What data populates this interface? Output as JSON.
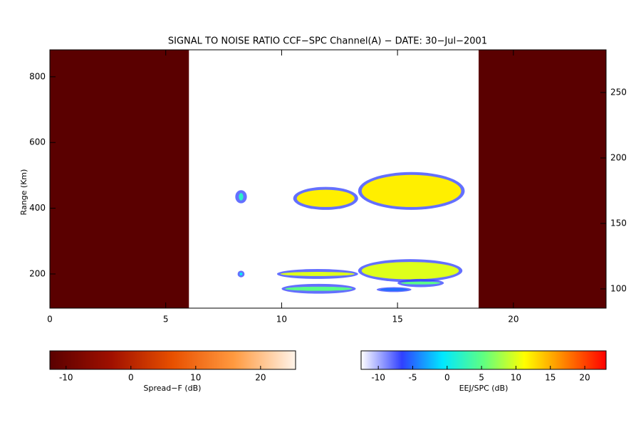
{
  "chart_data": {
    "type": "heatmap",
    "title": "SIGNAL TO NOISE RATIO CCF−SPC Channel(A) − DATE: 30−Jul−2001",
    "ylabel": "Range (Km)",
    "xlim": [
      0,
      24
    ],
    "xticks": [
      0,
      5,
      10,
      15,
      20
    ],
    "ylim": [
      96,
      882
    ],
    "yticks": [
      200,
      400,
      600,
      800
    ],
    "y2lim": [
      85.3,
      282.6
    ],
    "y2ticks": [
      100,
      150,
      200,
      250
    ],
    "spread_f": {
      "label": "Spread−F (dB)",
      "lim": [
        -12.5,
        25.4
      ],
      "ticks": [
        -10,
        0,
        10,
        20
      ],
      "colormap": [
        "#5a0000",
        "#a01000",
        "#e85000",
        "#ff9a40",
        "#fff4ea"
      ],
      "regions": [
        {
          "t0": 0,
          "t1": 6,
          "value": -12.5
        },
        {
          "t0": 18.5,
          "t1": 24,
          "value": -12.5
        }
      ]
    },
    "eej": {
      "label": "EEJ/SPC (dB)",
      "lim": [
        -12.5,
        23.1
      ],
      "ticks": [
        -10,
        -5,
        0,
        5,
        10,
        15,
        20
      ],
      "colormap": [
        "#ffffff",
        "#3040ff",
        "#00e8ff",
        "#60ff80",
        "#ffff00",
        "#ff8000",
        "#ff0000"
      ],
      "echoes": [
        {
          "t0": 10.5,
          "t1": 13.3,
          "r0": 395,
          "r1": 465,
          "snr": 12
        },
        {
          "t0": 13.3,
          "t1": 17.9,
          "r0": 395,
          "r1": 510,
          "snr": 12
        },
        {
          "t0": 8.0,
          "t1": 8.5,
          "r0": 415,
          "r1": 455,
          "snr": 2
        },
        {
          "t0": 9.8,
          "t1": 13.3,
          "r0": 185,
          "r1": 215,
          "snr": 10
        },
        {
          "t0": 13.3,
          "t1": 17.8,
          "r0": 175,
          "r1": 245,
          "snr": 10
        },
        {
          "t0": 10.0,
          "t1": 13.2,
          "r0": 140,
          "r1": 170,
          "snr": 5
        },
        {
          "t0": 14.1,
          "t1": 15.6,
          "r0": 145,
          "r1": 160,
          "snr": -5
        },
        {
          "t0": 15.0,
          "t1": 17.0,
          "r0": 160,
          "r1": 185,
          "snr": 5
        },
        {
          "t0": 8.1,
          "t1": 8.4,
          "r0": 190,
          "r1": 210,
          "snr": 0
        }
      ]
    }
  }
}
